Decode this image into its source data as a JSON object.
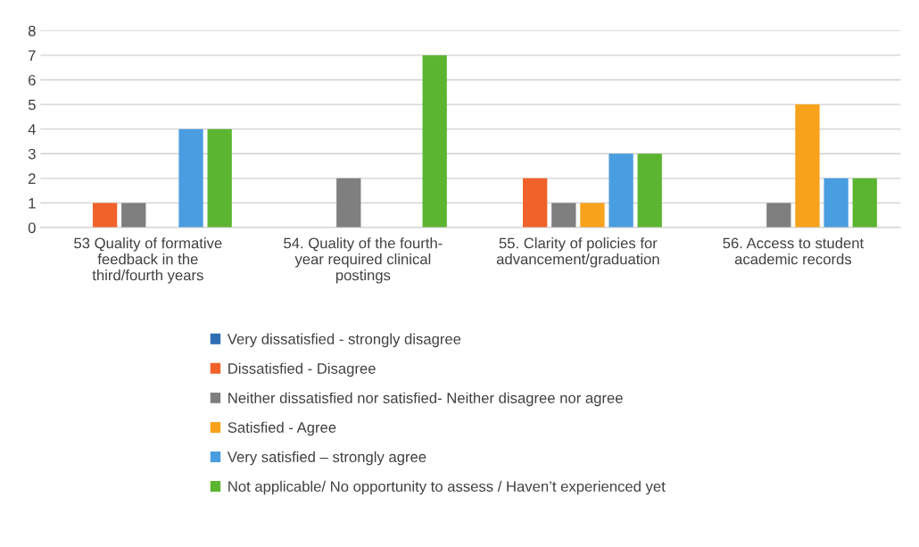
{
  "chart_data": {
    "type": "bar",
    "categories": [
      "53 Quality of formative\nfeedback in the\nthird/fourth years",
      "54. Quality of the fourth-\nyear required clinical\npostings",
      "55. Clarity of policies for\nadvancement/graduation",
      "56. Access to student\nacademic records"
    ],
    "series": [
      {
        "name": "Very dissatisfied - strongly disagree",
        "color": "#2f6db5",
        "values": [
          0,
          0,
          0,
          0
        ]
      },
      {
        "name": "Dissatisfied - Disagree",
        "color": "#f0622a",
        "values": [
          1,
          0,
          2,
          0
        ]
      },
      {
        "name": "Neither dissatisfied nor satisfied- Neither disagree nor agree",
        "color": "#7f7f7f",
        "values": [
          1,
          2,
          1,
          1
        ]
      },
      {
        "name": "Satisfied - Agree",
        "color": "#f7a21b",
        "values": [
          0,
          0,
          1,
          5
        ]
      },
      {
        "name": "Very satisfied – strongly agree",
        "color": "#4a9de0",
        "values": [
          4,
          0,
          3,
          2
        ]
      },
      {
        "name": "Not applicable/ No opportunity to assess / Haven’t experienced yet",
        "color": "#5cb531",
        "values": [
          4,
          7,
          3,
          2
        ]
      }
    ],
    "ylim": [
      0,
      8
    ],
    "yticks": [
      0,
      1,
      2,
      3,
      4,
      5,
      6,
      7,
      8
    ],
    "grid": "y",
    "legend": "bottom"
  }
}
